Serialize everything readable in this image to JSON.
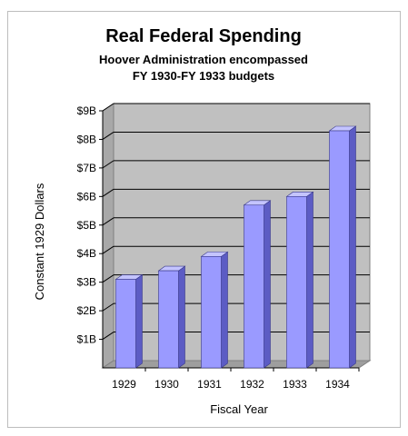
{
  "chart_data": {
    "type": "bar",
    "title": "Real Federal Spending",
    "subtitle_lines": [
      "Hoover Administration encompassed",
      "FY 1930-FY 1933 budgets"
    ],
    "xlabel": "Fiscal Year",
    "ylabel": "Constant 1929 Dollars",
    "categories": [
      "1929",
      "1930",
      "1931",
      "1932",
      "1933",
      "1934"
    ],
    "values": [
      3.1,
      3.4,
      3.9,
      5.7,
      6.0,
      8.3
    ],
    "ylim": [
      0,
      9
    ],
    "yticks": [
      1,
      2,
      3,
      4,
      5,
      6,
      7,
      8,
      9
    ],
    "ytick_labels": [
      "$1B",
      "$2B",
      "$3B",
      "$4B",
      "$5B",
      "$6B",
      "$7B",
      "$8B",
      "$9B"
    ],
    "grid": true,
    "three_d": true,
    "colors": {
      "bar_front": "#9a9aff",
      "bar_side": "#5c5cc4",
      "bar_top": "#c4c4ff",
      "plot_wall": "#c0c0c0",
      "floor": "#9e9e9e",
      "gridline": "#000000"
    }
  }
}
